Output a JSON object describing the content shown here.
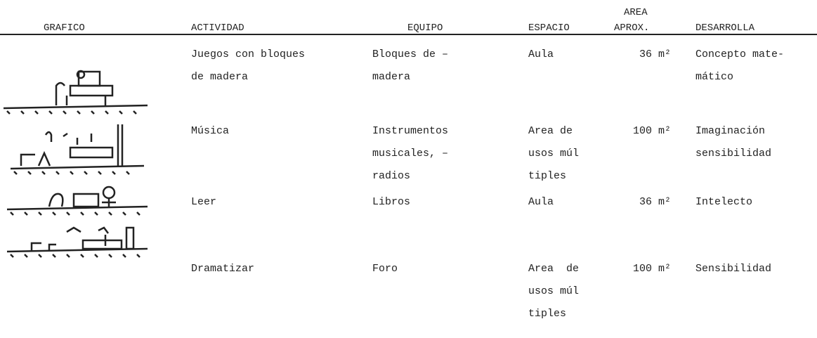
{
  "header": {
    "grafico": "GRAFICO",
    "actividad": "ACTIVIDAD",
    "equipo": "EQUIPO",
    "espacio": "ESPACIO",
    "area": [
      "AREA",
      "APROX."
    ],
    "desarrolla": "DESARROLLA"
  },
  "rows": [
    {
      "actividad": [
        "Juegos con bloques",
        "de madera"
      ],
      "equipo": [
        "Bloques de –",
        "madera"
      ],
      "espacio": [
        "Aula"
      ],
      "area": [
        "36 m²"
      ],
      "desarrolla": [
        "Concepto mate-",
        "mático"
      ]
    },
    {
      "actividad": [
        "Música"
      ],
      "equipo": [
        "Instrumentos",
        "musicales, –",
        "radios"
      ],
      "espacio": [
        "Area de",
        "usos múl",
        "tiples"
      ],
      "area": [
        "100 m²"
      ],
      "desarrolla": [
        "Imaginación",
        "sensibilidad"
      ]
    },
    {
      "actividad": [
        "Leer"
      ],
      "equipo": [
        "Libros"
      ],
      "espacio": [
        "Aula"
      ],
      "area": [
        "36 m²"
      ],
      "desarrolla": [
        "Intelecto"
      ]
    },
    {
      "actividad": [
        "Dramatizar"
      ],
      "equipo": [
        "Foro"
      ],
      "espacio": [
        "Area  de",
        "usos múl",
        "tiples"
      ],
      "area": [
        "100 m²"
      ],
      "desarrolla": [
        "Sensibilidad"
      ]
    }
  ]
}
